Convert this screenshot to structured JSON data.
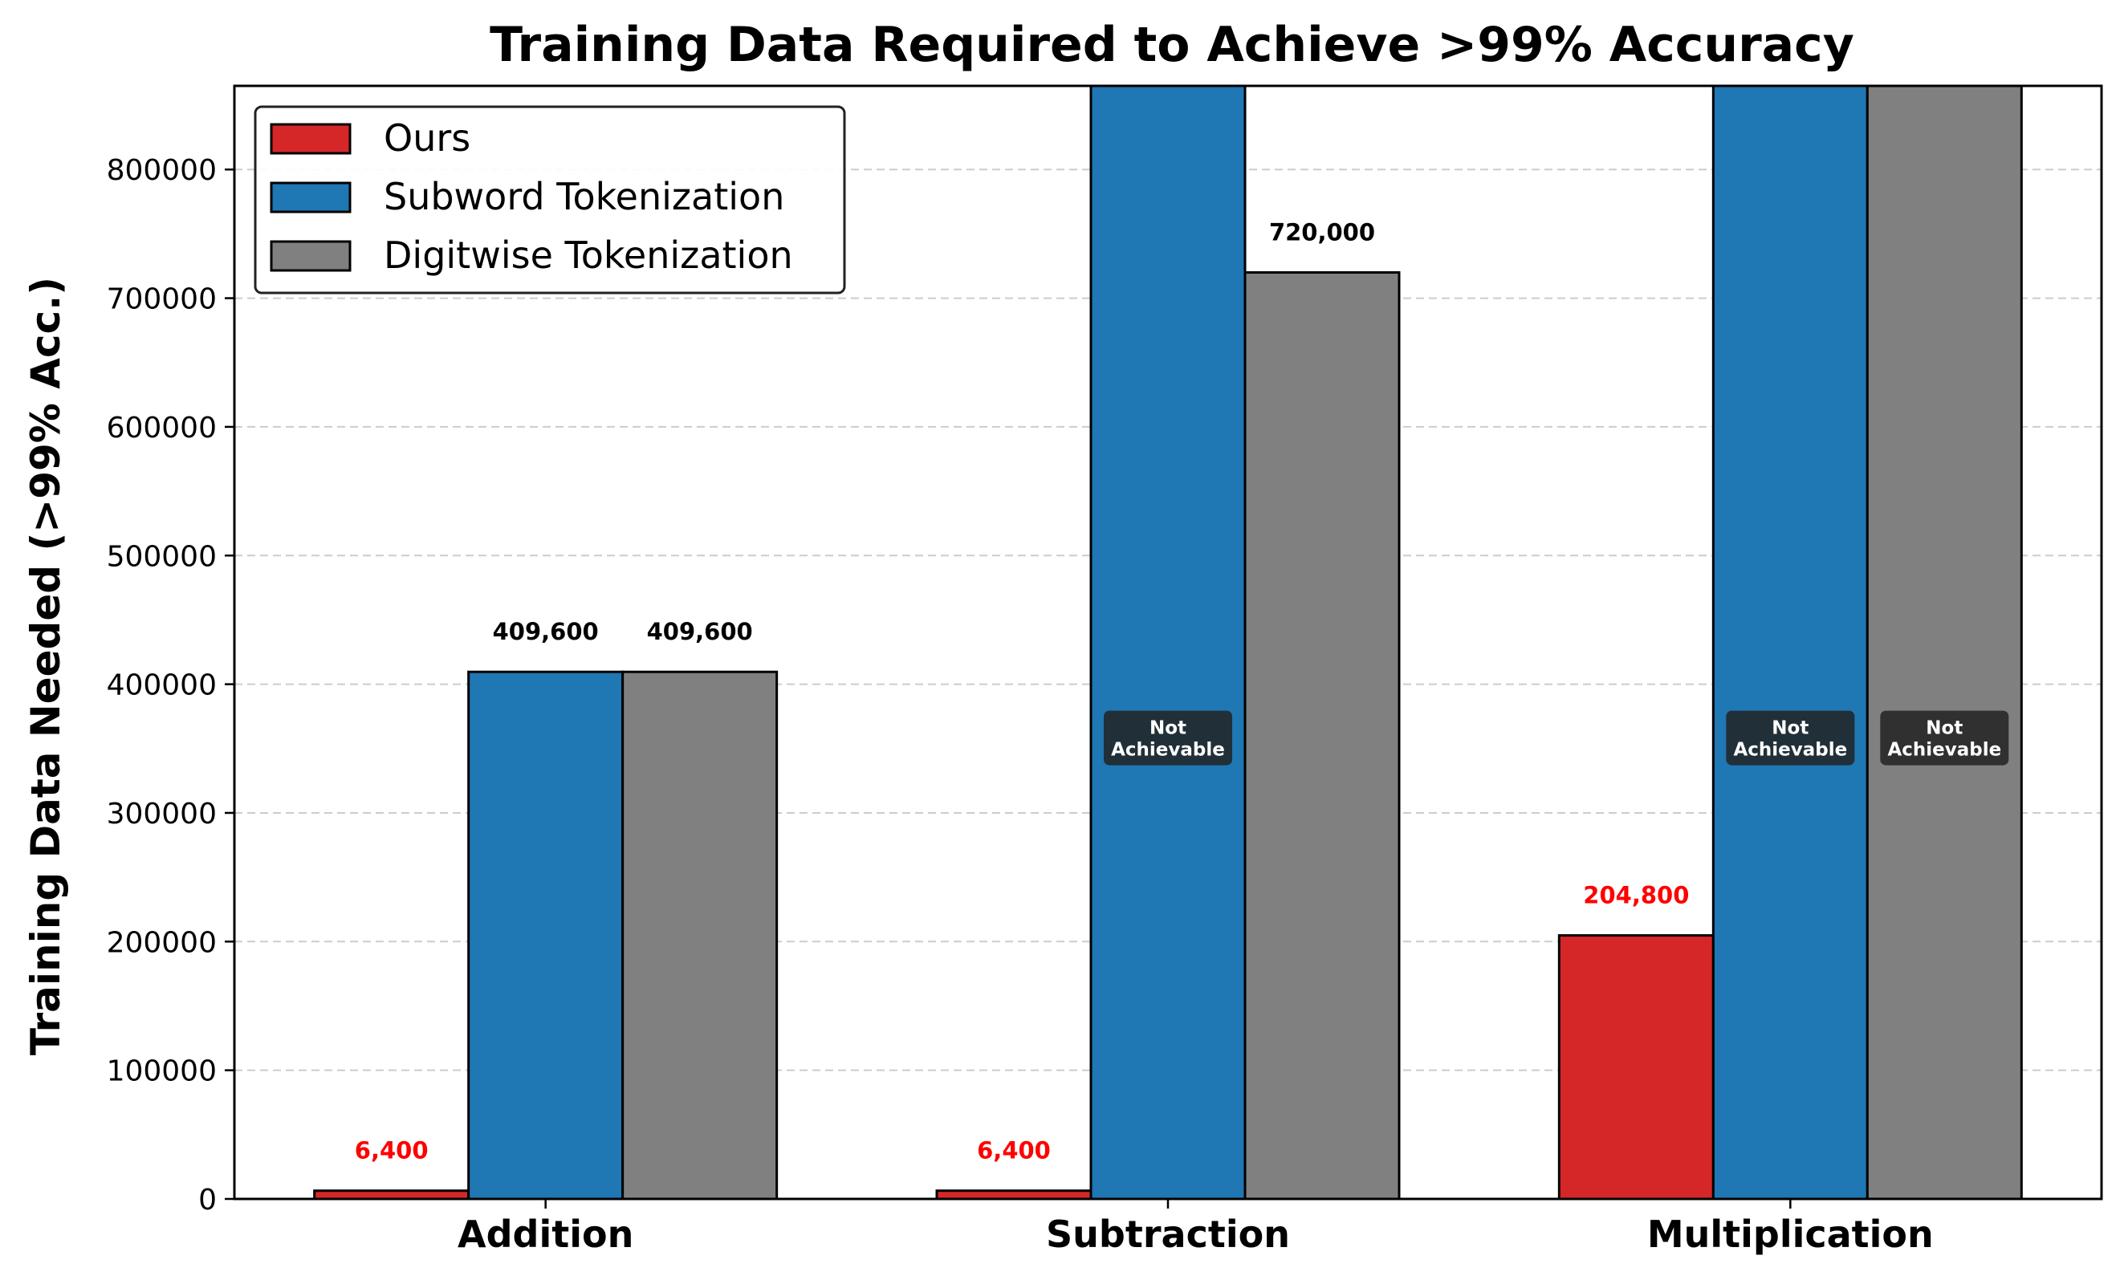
{
  "chart_data": {
    "type": "bar",
    "title": "Training Data Required to Achieve >99% Accuracy",
    "xlabel": "",
    "ylabel": "Training Data Needed (>99% Acc.)",
    "categories": [
      "Addition",
      "Subtraction",
      "Multiplication"
    ],
    "ylim": [
      0,
      865000
    ],
    "yticks": [
      0,
      100000,
      200000,
      300000,
      400000,
      500000,
      600000,
      700000,
      800000
    ],
    "ytick_labels": [
      "0",
      "100000",
      "200000",
      "300000",
      "400000",
      "500000",
      "600000",
      "700000",
      "800000"
    ],
    "grid": "y-dashed",
    "legend_position": "top-left",
    "series": [
      {
        "name": "Ours",
        "color": "#d62728",
        "values": [
          6400,
          6400,
          204800
        ],
        "value_labels": [
          "6,400",
          "6,400",
          "204,800"
        ],
        "value_label_color": "#ff0000",
        "not_achievable": [
          false,
          false,
          false
        ]
      },
      {
        "name": "Subword Tokenization",
        "color": "#1f77b4",
        "values": [
          409600,
          null,
          null
        ],
        "value_labels": [
          "409,600",
          "",
          ""
        ],
        "value_label_color": "#000000",
        "not_achievable": [
          false,
          true,
          true
        ]
      },
      {
        "name": "Digitwise Tokenization",
        "color": "#808080",
        "values": [
          409600,
          720000,
          null
        ],
        "value_labels": [
          "409,600",
          "720,000",
          ""
        ],
        "value_label_color": "#000000",
        "not_achievable": [
          false,
          false,
          true
        ]
      }
    ],
    "not_achievable_label": [
      "Not",
      "Achievable"
    ]
  }
}
